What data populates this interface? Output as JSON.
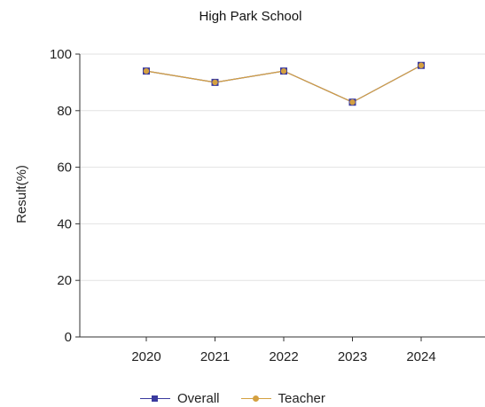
{
  "chart_data": {
    "type": "line",
    "title": "High Park School",
    "xlabel": "",
    "ylabel": "Result(%)",
    "categories": [
      "2020",
      "2021",
      "2022",
      "2023",
      "2024"
    ],
    "ylim": [
      0,
      100
    ],
    "yticks": [
      0,
      20,
      40,
      60,
      80,
      100
    ],
    "grid": true,
    "legend_position": "bottom",
    "series": [
      {
        "name": "Overall",
        "values": [
          94,
          90,
          94,
          83,
          96
        ],
        "color": "#3a3a9e",
        "marker": "square"
      },
      {
        "name": "Teacher",
        "values": [
          94,
          90,
          94,
          83,
          96
        ],
        "color": "#d4a040",
        "marker": "circle"
      }
    ]
  }
}
